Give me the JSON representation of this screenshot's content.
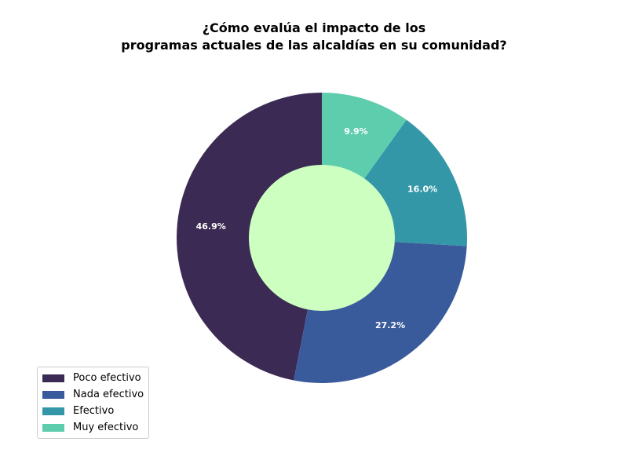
{
  "chart_data": {
    "type": "pie",
    "title_lines": [
      "¿Cómo evalúa el impacto de los",
      "programas actuales de las alcaldías en su comunidad?"
    ],
    "categories": [
      "Poco efectivo",
      "Nada efectivo",
      "Efectivo",
      "Muy efectivo"
    ],
    "values": [
      46.9,
      27.2,
      16.0,
      9.9
    ],
    "labels": [
      "46.9%",
      "27.2%",
      "16.0%",
      "9.9%"
    ],
    "colors": [
      "#3b2a53",
      "#3a5b9b",
      "#3497a8",
      "#5ecdae"
    ],
    "center_color": "#ccffc0",
    "donut": true,
    "legend_position": "lower-left"
  }
}
